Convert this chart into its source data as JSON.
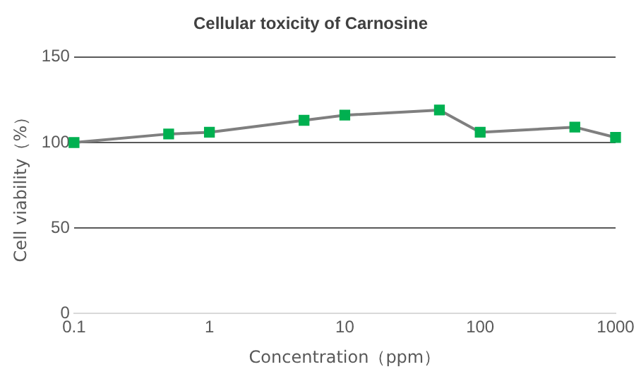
{
  "chart_data": {
    "type": "line",
    "title": "Cellular toxicity of Carnosine",
    "xlabel": "Concentration（ppm）",
    "ylabel": "Cell viability（%）",
    "x": [
      0.1,
      0.5,
      1,
      5,
      10,
      50,
      100,
      500,
      1000
    ],
    "series": [
      {
        "color": "#00b050",
        "values": [
          100,
          105,
          106,
          113,
          116,
          119,
          106,
          109,
          103
        ]
      }
    ],
    "log": "x",
    "xlim": [
      0.1,
      1000
    ],
    "xticks": [
      0.1,
      1,
      10,
      100,
      1000
    ],
    "ylim": [
      0,
      150
    ],
    "yticks": [
      0,
      50,
      100,
      150
    ],
    "grid": "y",
    "legend": false,
    "marker": "square",
    "line_style": "solid"
  }
}
